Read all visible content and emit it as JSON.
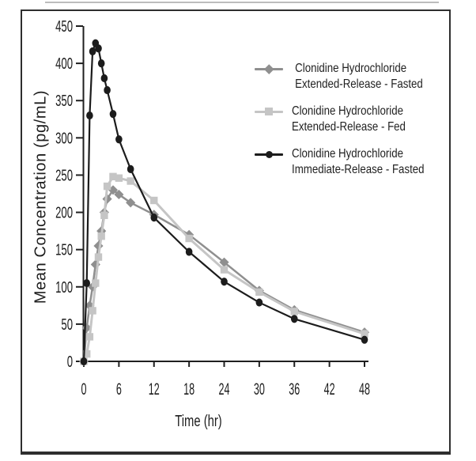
{
  "chart_data": {
    "type": "line",
    "title": "",
    "xlabel": "Time (hr)",
    "ylabel": "Mean Concentration (pg/mL)",
    "x": [
      0,
      0.5,
      1,
      1.5,
      2,
      2.5,
      3,
      3.5,
      4,
      5,
      6,
      8,
      12,
      18,
      24,
      30,
      36,
      48
    ],
    "xticks": [
      0,
      6,
      12,
      18,
      24,
      30,
      36,
      42,
      48
    ],
    "yticks": [
      0,
      50,
      100,
      150,
      200,
      250,
      300,
      350,
      400,
      450
    ],
    "xlim": [
      0,
      48
    ],
    "ylim": [
      0,
      450
    ],
    "grid": false,
    "legend_position": "upper right",
    "axis_color": "#1f1f1f",
    "series": [
      {
        "name": "Clonidine Hydrochloride Extended-Release - Fasted",
        "label_lines": [
          "Clonidine Hydrochloride",
          "Extended-Release - Fasted"
        ],
        "marker": "diamond",
        "color": "#8f8f8f",
        "line_width": 2.5,
        "values": [
          0,
          45,
          75,
          100,
          130,
          155,
          175,
          200,
          218,
          230,
          224,
          213,
          197,
          170,
          133,
          95,
          69,
          39
        ]
      },
      {
        "name": "Clonidine Hydrochloride Extended-Release - Fed",
        "label_lines": [
          "Clonidine Hydrochloride",
          "Extended-Release - Fed"
        ],
        "marker": "square",
        "color": "#c5c5c5",
        "line_width": 3,
        "values": [
          0,
          10,
          33,
          68,
          105,
          140,
          168,
          196,
          235,
          248,
          246,
          242,
          216,
          165,
          123,
          93,
          67,
          37
        ]
      },
      {
        "name": "Clonidine Hydrochloride Immediate-Release - Fasted",
        "label_lines": [
          "Clonidine Hydrochloride",
          "Immediate-Release - Fasted"
        ],
        "marker": "circle",
        "color": "#1c1c1c",
        "line_width": 2.2,
        "values": [
          0,
          105,
          330,
          416,
          427,
          420,
          400,
          380,
          364,
          332,
          298,
          258,
          193,
          147,
          107,
          79,
          57,
          29
        ]
      }
    ]
  }
}
